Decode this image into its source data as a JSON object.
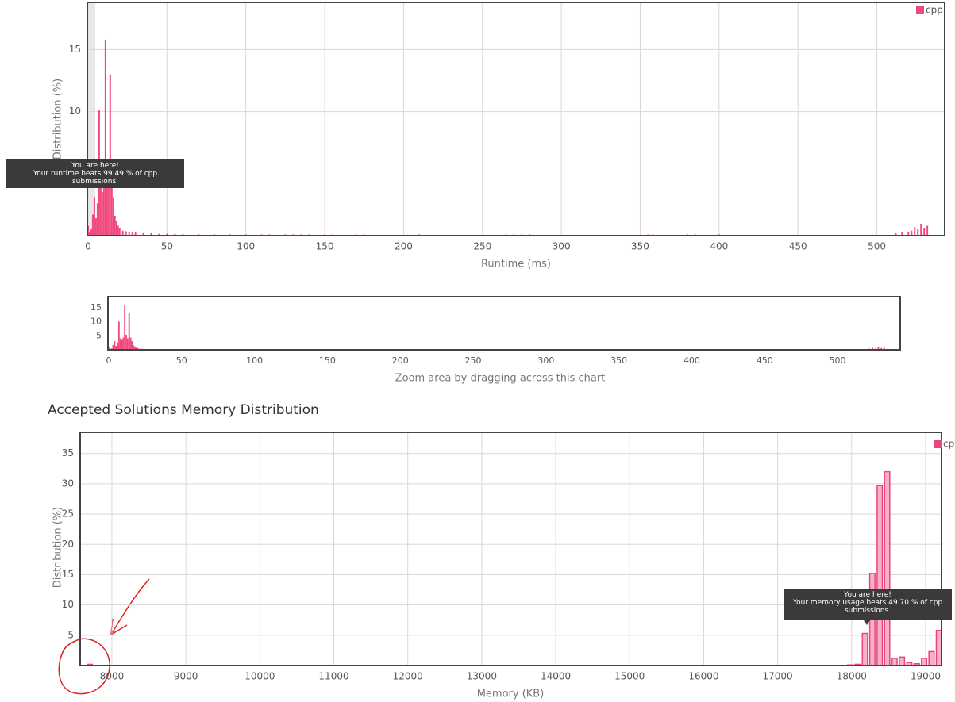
{
  "chart_data": [
    {
      "type": "bar",
      "x": [
        0,
        1,
        2,
        3,
        4,
        5,
        6,
        7,
        8,
        9,
        10,
        11,
        12,
        13,
        14,
        15,
        16,
        17,
        18,
        19,
        20,
        22,
        24,
        26,
        28,
        30,
        35,
        40,
        45,
        50,
        55,
        60,
        70,
        80,
        90,
        100,
        110,
        115,
        125,
        130,
        135,
        140,
        150,
        155,
        170,
        175,
        210,
        265,
        270,
        275,
        280,
        355,
        358,
        380,
        385,
        400,
        512,
        516,
        520,
        522,
        524,
        526,
        528,
        530,
        532
      ],
      "series": [
        {
          "name": "cpp",
          "color": "#ef4a7e",
          "values": [
            0.8,
            0.3,
            0.5,
            1.7,
            3.1,
            1.4,
            2.6,
            10.1,
            4.1,
            3.5,
            4.4,
            15.8,
            5.4,
            4.1,
            13,
            4.4,
            3.1,
            1.6,
            1.2,
            0.8,
            0.6,
            0.4,
            0.35,
            0.3,
            0.25,
            0.25,
            0.2,
            0.2,
            0.15,
            0.15,
            0.15,
            0.12,
            0.12,
            0.12,
            0.1,
            0.1,
            0.1,
            0.1,
            0.1,
            0.1,
            0.1,
            0.1,
            0.1,
            0.1,
            0.1,
            0.1,
            0.1,
            0.1,
            0.1,
            0.1,
            0.1,
            0.1,
            0.1,
            0.1,
            0.1,
            0.1,
            0.2,
            0.3,
            0.3,
            0.4,
            0.7,
            0.5,
            0.9,
            0.6,
            0.8
          ]
        }
      ],
      "xlim": [
        0,
        543
      ],
      "ylim": [
        0,
        18.8
      ],
      "xticks": [
        0,
        50,
        100,
        150,
        200,
        250,
        300,
        350,
        400,
        450,
        500
      ],
      "yticks": [
        10,
        15
      ],
      "xlabel": "Runtime (ms)",
      "ylabel": "Distribution (%)",
      "grid": true,
      "legend": "top-right",
      "annotation": {
        "title": "You are here!",
        "text": "Your runtime beats 99.49 % of cpp submissions."
      }
    },
    {
      "type": "bar",
      "xlim": [
        0,
        543
      ],
      "ylim": [
        0,
        19
      ],
      "xticks": [
        0,
        50,
        100,
        150,
        200,
        250,
        300,
        350,
        400,
        450,
        500
      ],
      "yticks": [
        5,
        10,
        15
      ],
      "xlabel": "Zoom area by dragging across this chart",
      "grid": false
    },
    {
      "type": "bar",
      "title": "Accepted Solutions Memory Distribution",
      "x": [
        7700,
        17980,
        18080,
        18180,
        18280,
        18380,
        18480,
        18580,
        18680,
        18780,
        18880,
        18980,
        19080,
        19180
      ],
      "series": [
        {
          "name": "cpp",
          "color": "#f7b2c8",
          "edge_color": "#e9467a",
          "values": [
            0.2,
            0.1,
            0.2,
            5.3,
            15.2,
            29.7,
            32,
            1.2,
            1.4,
            0.5,
            0.3,
            1.2,
            2.3,
            5.8
          ]
        }
      ],
      "xlim": [
        7571,
        19215
      ],
      "ylim": [
        0,
        38.5
      ],
      "xticks": [
        8000,
        9000,
        10000,
        11000,
        12000,
        13000,
        14000,
        15000,
        16000,
        17000,
        18000,
        19000
      ],
      "yticks": [
        5,
        10,
        15,
        20,
        25,
        30,
        35
      ],
      "xlabel": "Memory (KB)",
      "ylabel": "Distribution (%)",
      "grid": true,
      "legend": "top-right",
      "annotation": {
        "title": "You are here!",
        "text": "Your memory usage beats 49.70 % of cpp submissions."
      }
    }
  ]
}
